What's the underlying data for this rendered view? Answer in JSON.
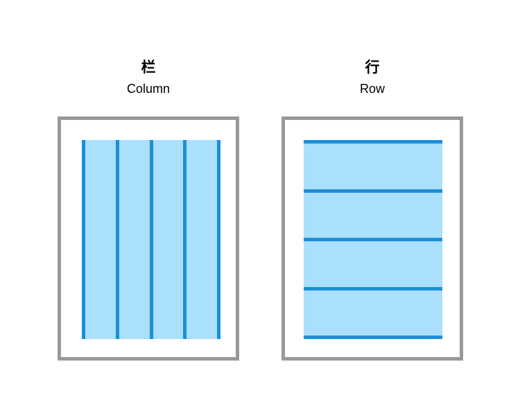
{
  "colors": {
    "frame": "#999999",
    "fill": "#aadffd",
    "line": "#1b8fd6"
  },
  "panels": [
    {
      "id": "column",
      "title": "栏",
      "subtitle": "Column",
      "line_orientation": "vertical",
      "line_count": 5
    },
    {
      "id": "row",
      "title": "行",
      "subtitle": "Row",
      "line_orientation": "horizontal",
      "line_count": 5
    }
  ]
}
